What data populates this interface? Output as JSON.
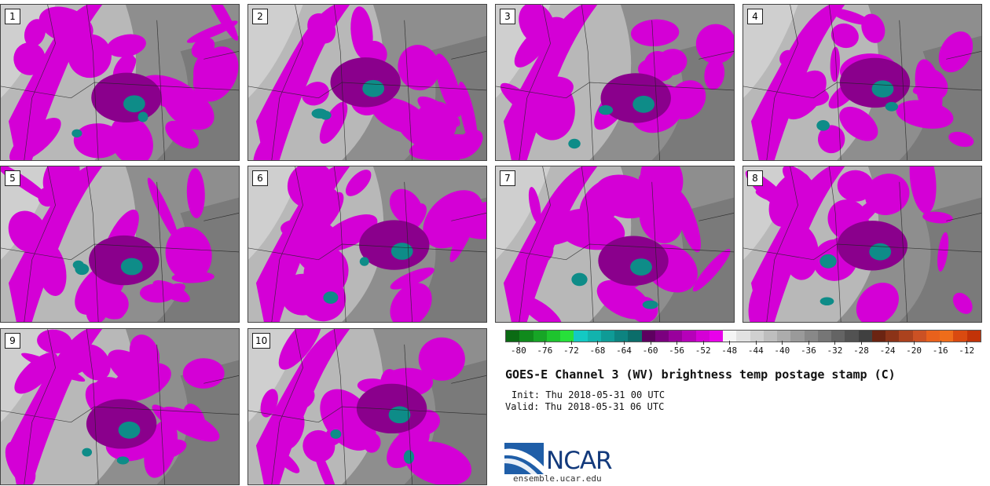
{
  "panels": [
    "1",
    "2",
    "3",
    "4",
    "5",
    "6",
    "7",
    "8",
    "9",
    "10"
  ],
  "colorbar": {
    "colors": [
      "#0b6b14",
      "#108a1c",
      "#17a526",
      "#1ec42e",
      "#27e03a",
      "#13c9c3",
      "#12b3ad",
      "#0f9b96",
      "#0d8380",
      "#0b6d6a",
      "#5e0060",
      "#7b007f",
      "#99009c",
      "#b600b9",
      "#d400d6",
      "#e900eb",
      "#f4f4f4",
      "#e2e2e2",
      "#d0d0d0",
      "#bebebe",
      "#acacac",
      "#9a9a9a",
      "#888888",
      "#767676",
      "#646464",
      "#525252",
      "#404040",
      "#6b2412",
      "#8b3318",
      "#ab421e",
      "#cb5124",
      "#e8611c",
      "#ef6d1a",
      "#d94a10",
      "#c23308"
    ],
    "ticks": [
      "-80",
      "-76",
      "-72",
      "-68",
      "-64",
      "-60",
      "-56",
      "-52",
      "-48",
      "-44",
      "-40",
      "-36",
      "-32",
      "-28",
      "-24",
      "-20",
      "-16",
      "-12"
    ],
    "tick_values": [
      -80,
      -76,
      -72,
      -68,
      -64,
      -60,
      -56,
      -52,
      -48,
      -44,
      -40,
      -36,
      -32,
      -28,
      -24,
      -20,
      -16,
      -12
    ],
    "min": -82,
    "max": -10
  },
  "title": "GOES-E Channel 3 (WV) brightness temp postage stamp (C)",
  "init": "Init: Thu 2018-05-31 00 UTC",
  "valid": "Valid: Thu 2018-05-31 06 UTC",
  "logo": {
    "text": "NCAR",
    "site": "ensemble.ucar.edu"
  },
  "colors": {
    "magenta": "#d400d6",
    "dark_magenta": "#8a008c",
    "teal": "#0e8c88",
    "gray_base": "#9a9a9a",
    "ncar_blue": "#133a7c"
  }
}
